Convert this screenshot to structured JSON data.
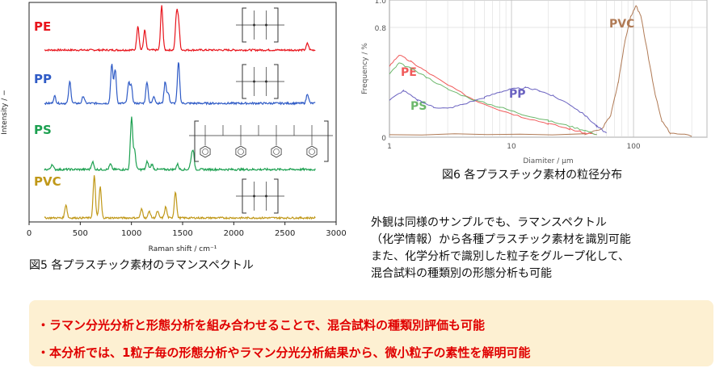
{
  "chart_data": [
    {
      "type": "line",
      "caption": "図5 各プラスチック素材のラマンスペクトル",
      "xlabel": "Raman shift / cm⁻¹",
      "ylabel": "Intensity / −",
      "xlim": [
        0,
        3000
      ],
      "xticks": [
        "0",
        "500",
        "1000",
        "1500",
        "2000",
        "2500",
        "3000"
      ],
      "series": [
        {
          "name": "PE",
          "color": "#e8141c",
          "peaks": [
            [
              1063,
              0.55
            ],
            [
              1130,
              0.45
            ],
            [
              1296,
              1.0
            ],
            [
              1440,
              0.75
            ],
            [
              1460,
              0.6
            ],
            [
              2720,
              0.15
            ],
            [
              2850,
              0.18
            ]
          ]
        },
        {
          "name": "PP",
          "color": "#2f5bc6",
          "peaks": [
            [
              250,
              0.15
            ],
            [
              398,
              0.45
            ],
            [
              530,
              0.15
            ],
            [
              808,
              0.8
            ],
            [
              841,
              0.7
            ],
            [
              973,
              0.4
            ],
            [
              998,
              0.35
            ],
            [
              1152,
              0.45
            ],
            [
              1220,
              0.15
            ],
            [
              1330,
              0.45
            ],
            [
              1360,
              0.2
            ],
            [
              1460,
              0.85
            ],
            [
              2720,
              0.2
            ],
            [
              2840,
              0.3
            ],
            [
              2880,
              0.3
            ]
          ]
        },
        {
          "name": "PS",
          "color": "#1ca050",
          "peaks": [
            [
              225,
              0.1
            ],
            [
              620,
              0.15
            ],
            [
              795,
              0.1
            ],
            [
              1001,
              1.0
            ],
            [
              1031,
              0.35
            ],
            [
              1155,
              0.15
            ],
            [
              1200,
              0.1
            ],
            [
              1450,
              0.1
            ],
            [
              1583,
              0.15
            ],
            [
              1602,
              0.35
            ],
            [
              2900,
              0.1
            ]
          ]
        },
        {
          "name": "PVC",
          "color": "#c09818",
          "peaks": [
            [
              360,
              0.3
            ],
            [
              637,
              0.95
            ],
            [
              695,
              0.7
            ],
            [
              1100,
              0.2
            ],
            [
              1175,
              0.15
            ],
            [
              1255,
              0.15
            ],
            [
              1335,
              0.25
            ],
            [
              1430,
              0.6
            ],
            [
              2820,
              0.1
            ],
            [
              2910,
              0.15
            ]
          ]
        }
      ]
    },
    {
      "type": "line",
      "caption": "図6 各プラスチック素材の粒径分布",
      "xlabel": "Diamiter / μm",
      "ylabel": "Frequency / %",
      "xscale": "log",
      "xlim": [
        1,
        400
      ],
      "ylim": [
        0,
        1.0
      ],
      "xticks": [
        "1",
        "10",
        "100"
      ],
      "yticks": [
        "0",
        "0.8",
        "1.0"
      ],
      "series": [
        {
          "name": "PVC",
          "color": "#b07a55",
          "points": [
            [
              1,
              0.02
            ],
            [
              40,
              0.02
            ],
            [
              55,
              0.06
            ],
            [
              65,
              0.16
            ],
            [
              75,
              0.4
            ],
            [
              85,
              0.7
            ],
            [
              95,
              0.88
            ],
            [
              105,
              0.96
            ],
            [
              115,
              0.88
            ],
            [
              130,
              0.62
            ],
            [
              150,
              0.32
            ],
            [
              170,
              0.12
            ],
            [
              200,
              0.03
            ],
            [
              300,
              0.01
            ]
          ]
        },
        {
          "name": "PE",
          "color": "#f05a5a",
          "points": [
            [
              1,
              0.52
            ],
            [
              1.2,
              0.6
            ],
            [
              1.5,
              0.55
            ],
            [
              2,
              0.48
            ],
            [
              3,
              0.38
            ],
            [
              5,
              0.27
            ],
            [
              8,
              0.2
            ],
            [
              12,
              0.15
            ],
            [
              20,
              0.1
            ],
            [
              30,
              0.06
            ],
            [
              40,
              0.03
            ],
            [
              50,
              0.02
            ]
          ]
        },
        {
          "name": "PS",
          "color": "#6cb86c",
          "points": [
            [
              1,
              0.46
            ],
            [
              1.2,
              0.54
            ],
            [
              1.5,
              0.5
            ],
            [
              2,
              0.44
            ],
            [
              3,
              0.35
            ],
            [
              5,
              0.27
            ],
            [
              8,
              0.22
            ],
            [
              12,
              0.17
            ],
            [
              20,
              0.12
            ],
            [
              30,
              0.08
            ],
            [
              40,
              0.05
            ],
            [
              50,
              0.02
            ]
          ]
        },
        {
          "name": "PP",
          "color": "#6a62c0",
          "points": [
            [
              1,
              0.27
            ],
            [
              1.3,
              0.34
            ],
            [
              1.7,
              0.27
            ],
            [
              2.3,
              0.22
            ],
            [
              3,
              0.21
            ],
            [
              4,
              0.24
            ],
            [
              6,
              0.29
            ],
            [
              8,
              0.33
            ],
            [
              10,
              0.35
            ],
            [
              13,
              0.36
            ],
            [
              17,
              0.34
            ],
            [
              22,
              0.3
            ],
            [
              30,
              0.24
            ],
            [
              40,
              0.16
            ],
            [
              50,
              0.08
            ],
            [
              60,
              0.03
            ]
          ]
        }
      ]
    }
  ],
  "paragraph": [
    "外観は同様のサンプルでも、ラマンスペクトル",
    "（化学情報）から各種プラスチック素材を識別可能",
    "また、化学分析で識別した粒子をグループ化して、",
    "混合試料の種類別の形態分析も可能"
  ],
  "summary": [
    "・ラマン分光分析と形態分析を組み合わせることで、混合試料の種類別評価も可能",
    "・本分析では、1粒子毎の形態分析やラマン分光分析結果から、微小粒子の素性を解明可能"
  ]
}
